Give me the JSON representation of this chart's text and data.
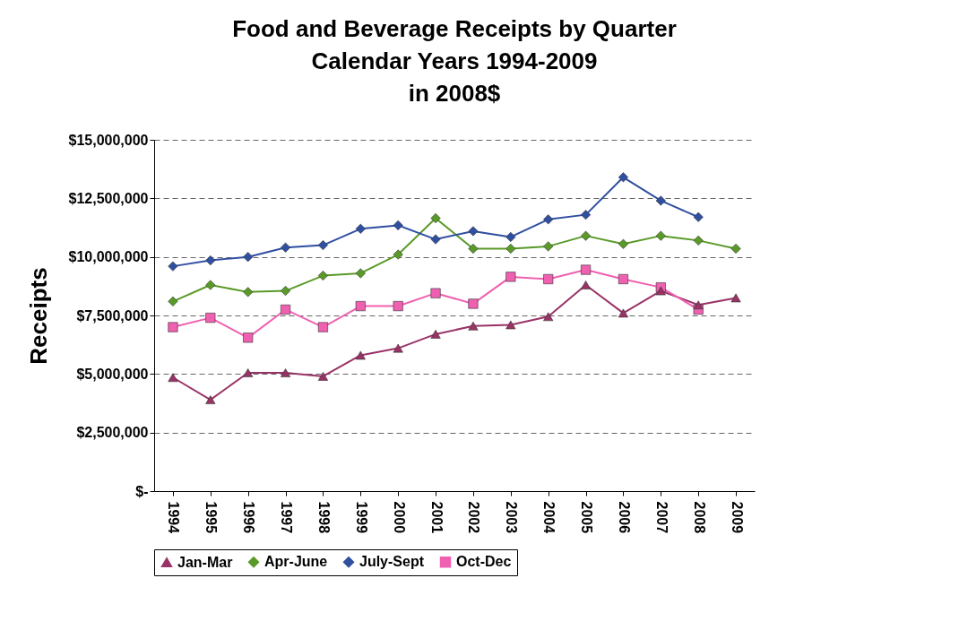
{
  "chart_data": {
    "type": "line",
    "title": "Food and Beverage Receipts by Quarter\nCalendar Years 1994-2009\nin 2008$",
    "ylabel": "Receipts",
    "categories": [
      "1994",
      "1995",
      "1996",
      "1997",
      "1998",
      "1999",
      "2000",
      "2001",
      "2002",
      "2003",
      "2004",
      "2005",
      "2006",
      "2007",
      "2008",
      "2009"
    ],
    "series": [
      {
        "name": "Jan-Mar",
        "color": "#993366",
        "marker": "triangle",
        "values": [
          4850000,
          3900000,
          5050000,
          5050000,
          4900000,
          5800000,
          6100000,
          6700000,
          7050000,
          7100000,
          7450000,
          8800000,
          7600000,
          8550000,
          7950000,
          8250000
        ]
      },
      {
        "name": "Apr-June",
        "color": "#5a9a28",
        "marker": "diamond",
        "values": [
          8100000,
          8800000,
          8500000,
          8550000,
          9200000,
          9300000,
          10100000,
          11650000,
          10350000,
          10350000,
          10450000,
          10900000,
          10550000,
          10900000,
          10700000,
          10350000
        ]
      },
      {
        "name": "July-Sept",
        "color": "#2f4fa0",
        "marker": "diamond",
        "values": [
          9600000,
          9850000,
          10000000,
          10400000,
          10500000,
          11200000,
          11350000,
          10750000,
          11100000,
          10850000,
          11600000,
          11800000,
          13400000,
          12400000,
          11700000,
          null
        ]
      },
      {
        "name": "Oct-Dec",
        "color": "#f060b0",
        "marker": "square",
        "values": [
          7000000,
          7400000,
          6550000,
          7750000,
          7000000,
          7900000,
          7900000,
          8450000,
          8000000,
          9150000,
          9050000,
          9450000,
          9050000,
          8700000,
          7750000,
          null
        ]
      }
    ],
    "ylim": [
      0,
      15000000
    ],
    "yticks": [
      {
        "value": 0,
        "label": "$-"
      },
      {
        "value": 2500000,
        "label": "$2,500,000"
      },
      {
        "value": 5000000,
        "label": "$5,000,000"
      },
      {
        "value": 7500000,
        "label": "$7,500,000"
      },
      {
        "value": 10000000,
        "label": "$10,000,000"
      },
      {
        "value": 12500000,
        "label": "$12,500,000"
      },
      {
        "value": 15000000,
        "label": "$15,000,000"
      }
    ],
    "grid": "y",
    "legend": "bottom"
  }
}
